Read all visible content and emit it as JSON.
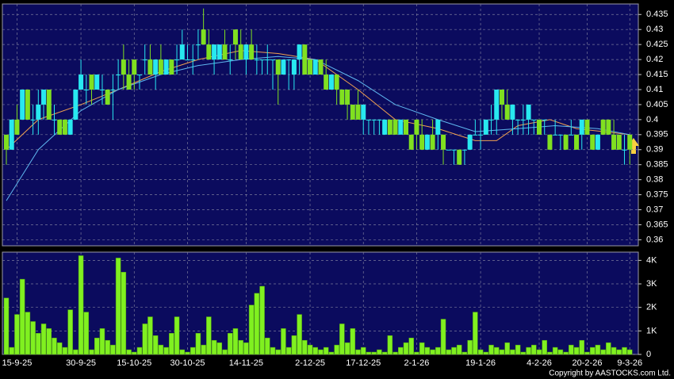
{
  "chart_data": [
    {
      "type": "candlestick",
      "categories": [
        null,
        null,
        "15-9-25",
        null,
        null,
        null,
        null,
        null,
        null,
        null,
        null,
        null,
        null,
        null,
        "30-9-25",
        null,
        null,
        null,
        null,
        null,
        null,
        null,
        null,
        null,
        "15-10-25",
        null,
        null,
        null,
        null,
        null,
        null,
        null,
        null,
        null,
        "30-10-25",
        null,
        null,
        null,
        null,
        null,
        null,
        null,
        null,
        null,
        null,
        "14-11-25",
        null,
        null,
        null,
        null,
        null,
        null,
        null,
        null,
        null,
        null,
        null,
        "2-12-25",
        null,
        null,
        null,
        null,
        null,
        null,
        null,
        null,
        null,
        "17-12-25",
        null,
        null,
        null,
        null,
        null,
        null,
        null,
        null,
        null,
        "2-1-26",
        null,
        null,
        null,
        null,
        null,
        null,
        null,
        null,
        null,
        null,
        null,
        "19-1-26",
        null,
        null,
        null,
        null,
        null,
        null,
        null,
        null,
        null,
        null,
        "4-2-26",
        null,
        null,
        null,
        null,
        null,
        null,
        null,
        null,
        "20-2-26",
        null,
        null,
        null,
        null,
        null,
        null,
        null,
        "9-3-26"
      ],
      "open": [
        0.395,
        0.39,
        0.4,
        0.4,
        0.41,
        0.4,
        0.4,
        0.405,
        0.41,
        0.4,
        0.4,
        0.4,
        0.395,
        0.4,
        0.41,
        0.41,
        0.415,
        0.41,
        0.41,
        0.41,
        0.41,
        0.415,
        0.42,
        0.415,
        0.42,
        0.415,
        0.42,
        0.42,
        0.415,
        0.42,
        0.415,
        0.42,
        0.42,
        0.42,
        0.42,
        0.42,
        0.425,
        0.43,
        0.425,
        0.42,
        0.42,
        0.425,
        0.42,
        0.43,
        0.425,
        0.42,
        0.425,
        0.42,
        0.42,
        0.42,
        0.42,
        0.42,
        0.415,
        0.42,
        0.415,
        0.42,
        0.425,
        0.42,
        0.415,
        0.42,
        0.415,
        0.41,
        0.415,
        0.41,
        0.41,
        0.405,
        0.405,
        0.4,
        0.4,
        0.4,
        0.4,
        0.395,
        0.4,
        0.4,
        0.395,
        0.4,
        0.395,
        0.4,
        0.395,
        0.39,
        0.395,
        0.395,
        0.395,
        0.39,
        0.39,
        0.39,
        0.39,
        0.39,
        0.395,
        0.395,
        0.395,
        0.4,
        0.4,
        0.41,
        0.405,
        0.4,
        0.4,
        0.4,
        0.4,
        0.4,
        0.4,
        0.4,
        0.395,
        0.395,
        0.395,
        0.395,
        0.395,
        0.395,
        0.395,
        0.4,
        0.395,
        0.39,
        0.4,
        0.4,
        0.395,
        0.395,
        0.39,
        0.395
      ],
      "high": [
        0.395,
        0.4,
        0.405,
        0.41,
        0.41,
        0.405,
        0.41,
        0.41,
        0.41,
        0.405,
        0.4,
        0.4,
        0.4,
        0.41,
        0.42,
        0.415,
        0.415,
        0.415,
        0.415,
        0.41,
        0.415,
        0.42,
        0.425,
        0.42,
        0.42,
        0.415,
        0.425,
        0.425,
        0.42,
        0.425,
        0.42,
        0.42,
        0.425,
        0.43,
        0.425,
        0.425,
        0.43,
        0.437,
        0.43,
        0.425,
        0.425,
        0.43,
        0.425,
        0.43,
        0.43,
        0.425,
        0.43,
        0.425,
        0.42,
        0.425,
        0.42,
        0.42,
        0.42,
        0.42,
        0.42,
        0.425,
        0.425,
        0.42,
        0.42,
        0.42,
        0.42,
        0.415,
        0.415,
        0.41,
        0.41,
        0.405,
        0.41,
        0.405,
        0.4,
        0.4,
        0.4,
        0.4,
        0.4,
        0.4,
        0.4,
        0.4,
        0.395,
        0.4,
        0.4,
        0.395,
        0.4,
        0.4,
        0.395,
        0.39,
        0.39,
        0.39,
        0.39,
        0.395,
        0.4,
        0.4,
        0.4,
        0.405,
        0.41,
        0.41,
        0.41,
        0.405,
        0.4,
        0.405,
        0.405,
        0.4,
        0.4,
        0.4,
        0.395,
        0.4,
        0.395,
        0.395,
        0.4,
        0.395,
        0.4,
        0.4,
        0.395,
        0.395,
        0.4,
        0.4,
        0.4,
        0.395,
        0.395,
        0.395
      ],
      "low": [
        0.385,
        0.39,
        0.395,
        0.4,
        0.4,
        0.395,
        0.395,
        0.4,
        0.4,
        0.395,
        0.395,
        0.395,
        0.395,
        0.4,
        0.41,
        0.405,
        0.405,
        0.41,
        0.405,
        0.405,
        0.4,
        0.41,
        0.41,
        0.41,
        0.41,
        0.41,
        0.415,
        0.415,
        0.41,
        0.415,
        0.415,
        0.415,
        0.415,
        0.42,
        0.42,
        0.415,
        0.42,
        0.425,
        0.42,
        0.415,
        0.42,
        0.42,
        0.415,
        0.42,
        0.42,
        0.415,
        0.42,
        0.415,
        0.415,
        0.415,
        0.41,
        0.405,
        0.415,
        0.41,
        0.41,
        0.415,
        0.415,
        0.415,
        0.415,
        0.415,
        0.41,
        0.41,
        0.405,
        0.405,
        0.4,
        0.4,
        0.4,
        0.395,
        0.395,
        0.395,
        0.395,
        0.395,
        0.395,
        0.395,
        0.395,
        0.395,
        0.39,
        0.39,
        0.39,
        0.39,
        0.39,
        0.39,
        0.385,
        0.39,
        0.385,
        0.385,
        0.385,
        0.39,
        0.395,
        0.39,
        0.395,
        0.395,
        0.395,
        0.4,
        0.4,
        0.395,
        0.395,
        0.395,
        0.395,
        0.395,
        0.395,
        0.395,
        0.39,
        0.395,
        0.39,
        0.39,
        0.395,
        0.39,
        0.39,
        0.395,
        0.39,
        0.39,
        0.395,
        0.395,
        0.39,
        0.39,
        0.385,
        0.385
      ],
      "close": [
        0.39,
        0.4,
        0.395,
        0.41,
        0.4,
        0.4,
        0.405,
        0.41,
        0.4,
        0.4,
        0.395,
        0.395,
        0.4,
        0.41,
        0.415,
        0.41,
        0.41,
        0.415,
        0.41,
        0.405,
        0.41,
        0.415,
        0.415,
        0.41,
        0.415,
        0.415,
        0.42,
        0.415,
        0.42,
        0.415,
        0.42,
        0.415,
        0.42,
        0.425,
        0.42,
        0.42,
        0.425,
        0.425,
        0.42,
        0.425,
        0.425,
        0.42,
        0.42,
        0.425,
        0.42,
        0.425,
        0.42,
        0.42,
        0.42,
        0.42,
        0.42,
        0.415,
        0.42,
        0.42,
        0.42,
        0.425,
        0.415,
        0.415,
        0.42,
        0.415,
        0.41,
        0.415,
        0.41,
        0.405,
        0.405,
        0.4,
        0.4,
        0.405,
        0.4,
        0.4,
        0.4,
        0.4,
        0.395,
        0.395,
        0.4,
        0.395,
        0.39,
        0.395,
        0.39,
        0.395,
        0.39,
        0.4,
        0.39,
        0.39,
        0.39,
        0.385,
        0.39,
        0.395,
        0.395,
        0.395,
        0.4,
        0.4,
        0.41,
        0.405,
        0.4,
        0.405,
        0.4,
        0.4,
        0.405,
        0.4,
        0.395,
        0.4,
        0.39,
        0.395,
        0.395,
        0.39,
        0.395,
        0.39,
        0.4,
        0.395,
        0.39,
        0.395,
        0.395,
        0.395,
        0.39,
        0.39,
        0.39,
        0.39
      ],
      "up_color": "#28e8f0",
      "down_color": "#80e020",
      "series": [
        {
          "color": "#f0a050",
          "x": [
            0,
            6,
            14,
            21,
            29,
            36,
            44,
            51,
            58,
            66,
            73,
            81,
            88,
            92,
            96,
            102,
            107,
            117
          ],
          "values": [
            0.39,
            0.4,
            0.405,
            0.41,
            0.416,
            0.42,
            0.423,
            0.422,
            0.42,
            0.41,
            0.4,
            0.397,
            0.393,
            0.393,
            0.398,
            0.4,
            0.397,
            0.395
          ]
        },
        {
          "color": "#60b8f0",
          "x": [
            0,
            6,
            14,
            21,
            29,
            36,
            44,
            51,
            58,
            66,
            73,
            81,
            88,
            96,
            103,
            111,
            117
          ],
          "values": [
            0.373,
            0.39,
            0.403,
            0.41,
            0.415,
            0.418,
            0.42,
            0.421,
            0.42,
            0.413,
            0.405,
            0.4,
            0.396,
            0.397,
            0.398,
            0.397,
            0.395
          ]
        }
      ],
      "ylim": [
        0.358,
        0.4385
      ],
      "yticks": [
        0.36,
        0.365,
        0.37,
        0.375,
        0.38,
        0.385,
        0.39,
        0.395,
        0.4,
        0.405,
        0.41,
        0.415,
        0.42,
        0.425,
        0.43,
        0.435
      ],
      "grid": true
    },
    {
      "type": "bar",
      "values": [
        2400,
        300,
        1700,
        3200,
        1800,
        1400,
        900,
        1300,
        1100,
        700,
        500,
        300,
        1900,
        200,
        4200,
        1800,
        200,
        700,
        1100,
        600,
        400,
        4100,
        3500,
        200,
        100,
        300,
        1300,
        1600,
        800,
        400,
        300,
        900,
        1600,
        200,
        100,
        300,
        900,
        400,
        1600,
        600,
        500,
        200,
        900,
        1100,
        600,
        500,
        2100,
        2600,
        2900,
        700,
        300,
        200,
        1100,
        300,
        800,
        1700,
        600,
        400,
        300,
        200,
        300,
        100,
        400,
        1300,
        500,
        1100,
        200,
        300,
        100,
        100,
        200,
        100,
        800,
        100,
        300,
        500,
        700,
        100,
        500,
        300,
        200,
        300,
        1500,
        200,
        300,
        400,
        100,
        600,
        1800,
        200,
        100,
        400,
        300,
        200,
        500,
        200,
        400,
        100,
        300,
        400,
        200,
        600,
        100,
        300,
        200,
        100,
        400,
        300,
        600,
        100,
        300,
        400,
        200,
        500,
        300,
        200,
        300,
        200
      ],
      "color": "#80f020",
      "ylim": [
        0,
        4350
      ],
      "yticks": [
        0,
        {
          "value": 1000,
          "label": "1K"
        },
        {
          "value": 2000,
          "label": "2K"
        },
        {
          "value": 3000,
          "label": "3K"
        },
        {
          "value": 4000,
          "label": "4K"
        }
      ],
      "grid": true,
      "copyright": "Copyright by AASTOCKS.com Ltd."
    }
  ]
}
